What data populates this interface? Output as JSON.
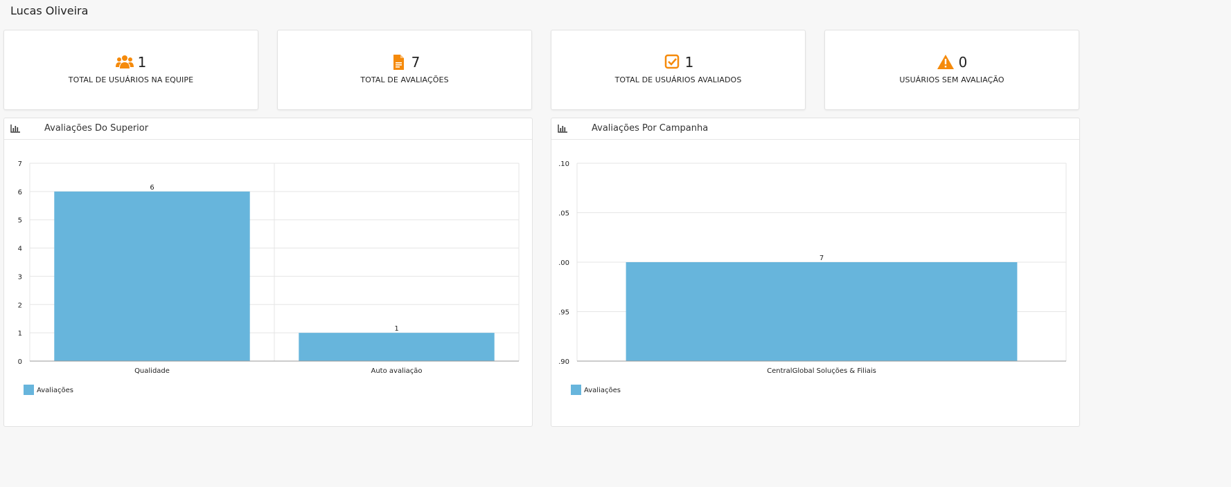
{
  "user": {
    "name": "Lucas Oliveira"
  },
  "cards": [
    {
      "icon": "users-icon",
      "value": "1",
      "label": "TOTAL DE USUÁRIOS NA EQUIPE"
    },
    {
      "icon": "file-icon",
      "value": "7",
      "label": "TOTAL DE AVALIAÇÕES"
    },
    {
      "icon": "checkbox-icon",
      "value": "1",
      "label": "TOTAL DE USUÁRIOS AVALIADOS"
    },
    {
      "icon": "warning-icon",
      "value": "0",
      "label": "USUÁRIOS SEM AVALIAÇÃO"
    }
  ],
  "colors": {
    "accent": "#f58a0b",
    "bar": "#67b5dc",
    "grid": "#e5e5e5"
  },
  "chart_data": [
    {
      "type": "bar",
      "title": "Avaliações Do Superior",
      "categories": [
        "Qualidade",
        "Auto avaliação"
      ],
      "series": [
        {
          "name": "Avaliações",
          "values": [
            6,
            1
          ]
        }
      ],
      "data_labels": [
        "6",
        "1"
      ],
      "ylim": [
        0,
        7
      ],
      "yticks": [
        "0",
        "1",
        "2",
        "3",
        "4",
        "5",
        "6",
        "7"
      ],
      "grid": true,
      "legend": "bottom-left"
    },
    {
      "type": "bar",
      "title": "Avaliações Por Campanha",
      "categories": [
        "CentralGlobal Soluções & Filiais"
      ],
      "series": [
        {
          "name": "Avaliações",
          "values": [
            7
          ]
        }
      ],
      "data_labels": [
        "7"
      ],
      "ylim": [
        6.9,
        7.1
      ],
      "yticks": [
        ".90",
        ".95",
        ".00",
        ".05",
        ".10"
      ],
      "grid": true,
      "legend": "bottom-left"
    }
  ]
}
